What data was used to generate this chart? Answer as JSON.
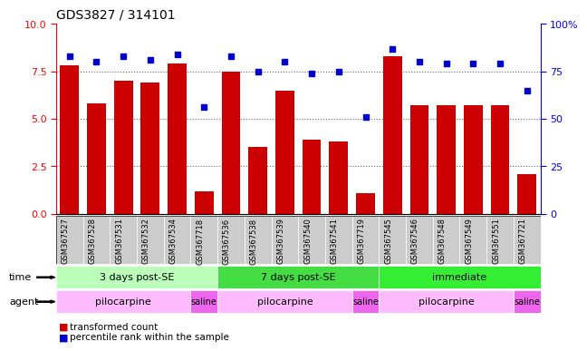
{
  "title": "GDS3827 / 314101",
  "samples": [
    "GSM367527",
    "GSM367528",
    "GSM367531",
    "GSM367532",
    "GSM367534",
    "GSM367718",
    "GSM367536",
    "GSM367538",
    "GSM367539",
    "GSM367540",
    "GSM367541",
    "GSM367719",
    "GSM367545",
    "GSM367546",
    "GSM367548",
    "GSM367549",
    "GSM367551",
    "GSM367721"
  ],
  "transformed_count": [
    7.8,
    5.8,
    7.0,
    6.9,
    7.9,
    1.2,
    7.5,
    3.5,
    6.5,
    3.9,
    3.8,
    1.1,
    8.3,
    5.7,
    5.7,
    5.7,
    5.7,
    2.1
  ],
  "percentile_rank": [
    83,
    80,
    83,
    81,
    84,
    56,
    83,
    75,
    80,
    74,
    75,
    51,
    87,
    80,
    79,
    79,
    79,
    65
  ],
  "ylim_left": [
    0,
    10
  ],
  "ylim_right": [
    0,
    100
  ],
  "yticks_left": [
    0,
    2.5,
    5.0,
    7.5,
    10
  ],
  "yticks_right": [
    0,
    25,
    50,
    75,
    100
  ],
  "bar_color": "#cc0000",
  "dot_color": "#0000cc",
  "time_groups": [
    {
      "label": "3 days post-SE",
      "start": 0,
      "end": 5,
      "color": "#bbffbb"
    },
    {
      "label": "7 days post-SE",
      "start": 6,
      "end": 11,
      "color": "#44dd44"
    },
    {
      "label": "immediate",
      "start": 12,
      "end": 17,
      "color": "#33ee33"
    }
  ],
  "agent_groups": [
    {
      "label": "pilocarpine",
      "start": 0,
      "end": 4,
      "color": "#ffbbff"
    },
    {
      "label": "saline",
      "start": 5,
      "end": 5,
      "color": "#ee66ee"
    },
    {
      "label": "pilocarpine",
      "start": 6,
      "end": 10,
      "color": "#ffbbff"
    },
    {
      "label": "saline",
      "start": 11,
      "end": 11,
      "color": "#ee66ee"
    },
    {
      "label": "pilocarpine",
      "start": 12,
      "end": 16,
      "color": "#ffbbff"
    },
    {
      "label": "saline",
      "start": 17,
      "end": 17,
      "color": "#ee66ee"
    }
  ],
  "legend_items": [
    {
      "label": "transformed count",
      "color": "#cc0000"
    },
    {
      "label": "percentile rank within the sample",
      "color": "#0000cc"
    }
  ],
  "grid_color": "#666666",
  "background_color": "#ffffff",
  "tick_label_bg": "#cccccc"
}
